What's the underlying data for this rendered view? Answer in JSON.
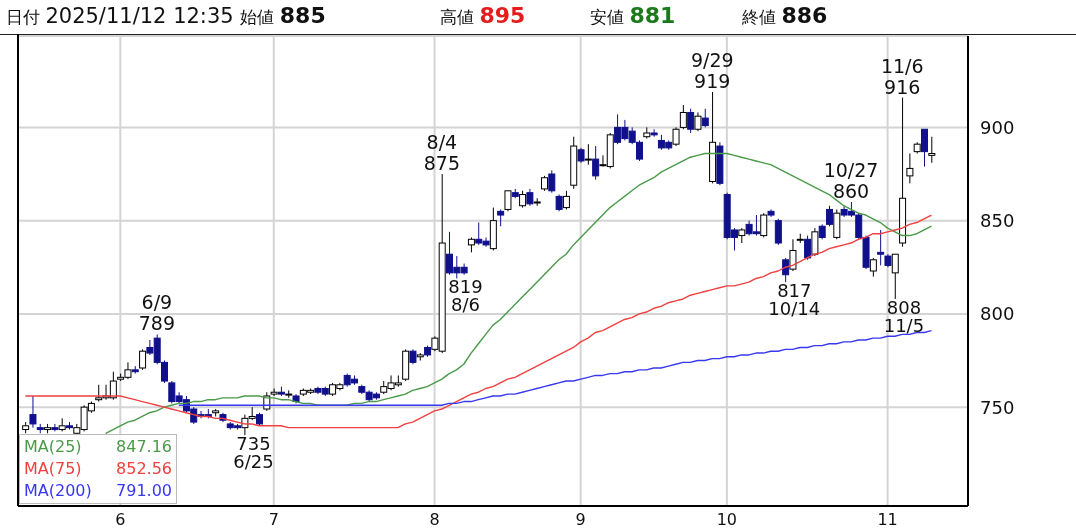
{
  "chart_data": {
    "type": "candlestick",
    "title": "日付 2025/11/12 12:35 始値 885 高値 895 安値 881 終値 886",
    "colors": [
      "#ffffff",
      "#10108c",
      "#10108c",
      "#ffffff",
      "#10108c",
      "#ffffff",
      "#10108c",
      "#ffffff",
      "#ffffff",
      "#ffffff",
      "#ffffff",
      "#ffffff",
      "#ffffff",
      "#ffffff",
      "#ffffff",
      "#10108c",
      "#ffffff",
      "#10108c",
      "#10108c",
      "#10108c",
      "#10108c",
      "#10108c",
      "#10108c",
      "#10108c",
      "#10108c",
      "#10108c",
      "#ffffff",
      "#10108c",
      "#10108c",
      "#10108c",
      "#ffffff",
      "#ffffff",
      "#10108c",
      "#ffffff",
      "#ffffff",
      "#10108c",
      "#ffffff",
      "#10108c",
      "#ffffff",
      "#ffffff",
      "#10108c",
      "#10108c",
      "#ffffff",
      "#ffffff",
      "#10108c",
      "#10108c",
      "#10108c",
      "#10108c",
      "#10108c",
      "#ffffff",
      "#ffffff",
      "#ffffff",
      "#ffffff",
      "#10108c",
      "#ffffff",
      "#10108c",
      "#ffffff",
      "#ffffff",
      "#10108c",
      "#10108c",
      "#10108c",
      "#ffffff",
      "#10108c",
      "#10108c",
      "#ffffff",
      "#10108c",
      "#ffffff",
      "#10108c",
      "#ffffff",
      "#10108c",
      "#ffffff",
      "#ffffff",
      "#10108c",
      "#10108c",
      "#ffffff",
      "#ffffff",
      "#10108c",
      "#ffffff",
      "#10108c",
      "#ffffff",
      "#ffffff",
      "#10108c",
      "#10108c",
      "#10108c",
      "#10108c",
      "#ffffff",
      "#10108c",
      "#10108c",
      "#10108c",
      "#ffffff",
      "#ffffff",
      "#10108c",
      "#ffffff",
      "#10108c",
      "#ffffff",
      "#10108c",
      "#10108c",
      "#10108c",
      "#ffffff",
      "#10108c",
      "#10108c",
      "#ffffff",
      "#10108c",
      "#10108c",
      "#10108c",
      "#ffffff",
      "#ffffff",
      "#10108c",
      "#ffffff",
      "#10108c",
      "#10108c",
      "#ffffff",
      "#10108c",
      "#10108c",
      "#10108c",
      "#10108c",
      "#ffffff",
      "#10108c",
      "#10108c",
      "#ffffff",
      "#ffffff",
      "#ffffff",
      "#ffffff",
      "#10108c",
      "#ffffff"
    ],
    "categories": [
      null,
      null,
      null,
      null,
      null,
      null,
      null,
      null,
      null,
      null,
      null,
      null,
      null,
      "6",
      null,
      null,
      null,
      null,
      null,
      null,
      null,
      null,
      null,
      null,
      null,
      null,
      null,
      null,
      null,
      null,
      null,
      null,
      null,
      null,
      "7",
      null,
      null,
      null,
      null,
      null,
      null,
      null,
      null,
      null,
      null,
      null,
      null,
      null,
      null,
      null,
      null,
      null,
      null,
      null,
      null,
      null,
      "8",
      null,
      null,
      null,
      null,
      null,
      null,
      null,
      null,
      null,
      null,
      null,
      null,
      null,
      null,
      null,
      null,
      null,
      null,
      null,
      "9",
      null,
      null,
      null,
      null,
      null,
      null,
      null,
      null,
      null,
      null,
      null,
      null,
      null,
      null,
      null,
      null,
      null,
      null,
      null,
      "10",
      null,
      null,
      null,
      null,
      null,
      null,
      null,
      null,
      null,
      null,
      null,
      null,
      null,
      null,
      null,
      null,
      null,
      null,
      null,
      null,
      null,
      "11",
      null,
      null,
      null,
      null,
      null,
      null
    ],
    "ohlc": [
      [
        738,
        742,
        736,
        740
      ],
      [
        746,
        756,
        739,
        741
      ],
      [
        739,
        741,
        736,
        738
      ],
      [
        738,
        741,
        736,
        739
      ],
      [
        739,
        741,
        737,
        738
      ],
      [
        738,
        744,
        737,
        740
      ],
      [
        740,
        742,
        738,
        739
      ],
      [
        736,
        741,
        736,
        739
      ],
      [
        738,
        751,
        737,
        750
      ],
      [
        748,
        753,
        747,
        752
      ],
      [
        754,
        762,
        753,
        755
      ],
      [
        755,
        762,
        754,
        756
      ],
      [
        755,
        769,
        754,
        764
      ],
      [
        765,
        768,
        764,
        766
      ],
      [
        766,
        774,
        765,
        770
      ],
      [
        770,
        772,
        768,
        769
      ],
      [
        771,
        781,
        770,
        780
      ],
      [
        782,
        786,
        778,
        779
      ],
      [
        787,
        789,
        773,
        774
      ],
      [
        774,
        775,
        763,
        764
      ],
      [
        763,
        764,
        752,
        753
      ],
      [
        756,
        758,
        752,
        753
      ],
      [
        754,
        756,
        747,
        748
      ],
      [
        749,
        750,
        741,
        742
      ],
      [
        746,
        748,
        744,
        745
      ],
      [
        746,
        749,
        744,
        745
      ],
      [
        747,
        749,
        745,
        748
      ],
      [
        746,
        747,
        742,
        743
      ],
      [
        741,
        742,
        738,
        739
      ],
      [
        740,
        741,
        738,
        739
      ],
      [
        739,
        746,
        735,
        744
      ],
      [
        744,
        750,
        743,
        745
      ],
      [
        746,
        747,
        740,
        741
      ],
      [
        749,
        758,
        748,
        756
      ],
      [
        757,
        760,
        756,
        758
      ],
      [
        758,
        761,
        756,
        757
      ],
      [
        757,
        759,
        755,
        757
      ],
      [
        756,
        757,
        752,
        753
      ],
      [
        757,
        760,
        756,
        759
      ],
      [
        758,
        760,
        757,
        759
      ],
      [
        760,
        761,
        757,
        758
      ],
      [
        760,
        761,
        756,
        757
      ],
      [
        757,
        763,
        756,
        762
      ],
      [
        760,
        763,
        759,
        762
      ],
      [
        767,
        768,
        761,
        762
      ],
      [
        765,
        767,
        762,
        763
      ],
      [
        761,
        762,
        757,
        758
      ],
      [
        758,
        759,
        753,
        754
      ],
      [
        757,
        758,
        754,
        755
      ],
      [
        758,
        764,
        757,
        761
      ],
      [
        760,
        767,
        759,
        763
      ],
      [
        762,
        767,
        761,
        763
      ],
      [
        765,
        781,
        764,
        780
      ],
      [
        780,
        781,
        773,
        774
      ],
      [
        777,
        779,
        775,
        778
      ],
      [
        782,
        783,
        777,
        778
      ],
      [
        781,
        788,
        780,
        787
      ],
      [
        780,
        875,
        779,
        838
      ],
      [
        832,
        844,
        821,
        822
      ],
      [
        825,
        831,
        819,
        822
      ],
      [
        825,
        827,
        821,
        822
      ],
      [
        837,
        841,
        833,
        840
      ],
      [
        840,
        849,
        837,
        838
      ],
      [
        839,
        841,
        836,
        837
      ],
      [
        835,
        857,
        834,
        850
      ],
      [
        855,
        856,
        847,
        853
      ],
      [
        856,
        866,
        855,
        866
      ],
      [
        865,
        867,
        862,
        863
      ],
      [
        858,
        866,
        857,
        864
      ],
      [
        865,
        867,
        858,
        859
      ],
      [
        860,
        862,
        858,
        860
      ],
      [
        867,
        874,
        866,
        873
      ],
      [
        875,
        877,
        865,
        866
      ],
      [
        863,
        864,
        855,
        856
      ],
      [
        857,
        866,
        856,
        863
      ],
      [
        869,
        895,
        867,
        890
      ],
      [
        888,
        889,
        881,
        882
      ],
      [
        883,
        891,
        880,
        883
      ],
      [
        883,
        890,
        872,
        874
      ],
      [
        880,
        885,
        879,
        880
      ],
      [
        879,
        897,
        878,
        896
      ],
      [
        900,
        907,
        891,
        892
      ],
      [
        900,
        904,
        893,
        894
      ],
      [
        898,
        900,
        891,
        892
      ],
      [
        892,
        893,
        882,
        883
      ],
      [
        895,
        900,
        894,
        897
      ],
      [
        897,
        899,
        895,
        896
      ],
      [
        893,
        896,
        888,
        889
      ],
      [
        892,
        893,
        888,
        889
      ],
      [
        891,
        900,
        890,
        899
      ],
      [
        900,
        912,
        899,
        908
      ],
      [
        908,
        910,
        897,
        899
      ],
      [
        899,
        908,
        898,
        906
      ],
      [
        905,
        910,
        900,
        901
      ],
      [
        871,
        919,
        870,
        892
      ],
      [
        890,
        892,
        869,
        870
      ],
      [
        864,
        865,
        840,
        841
      ],
      [
        845,
        846,
        834,
        841
      ],
      [
        842,
        846,
        838,
        845
      ],
      [
        848,
        850,
        842,
        843
      ],
      [
        844,
        853,
        842,
        843
      ],
      [
        842,
        854,
        841,
        853
      ],
      [
        855,
        856,
        852,
        853
      ],
      [
        850,
        851,
        837,
        838
      ],
      [
        829,
        830,
        817,
        821
      ],
      [
        824,
        840,
        823,
        834
      ],
      [
        840,
        843,
        838,
        840
      ],
      [
        840,
        842,
        829,
        830
      ],
      [
        832,
        846,
        831,
        844
      ],
      [
        847,
        848,
        840,
        841
      ],
      [
        856,
        858,
        847,
        848
      ],
      [
        841,
        856,
        840,
        854
      ],
      [
        856,
        858,
        852,
        853
      ],
      [
        855,
        860,
        852,
        853
      ],
      [
        853,
        854,
        840,
        841
      ],
      [
        841,
        842,
        824,
        825
      ],
      [
        823,
        830,
        820,
        829
      ],
      [
        833,
        845,
        826,
        832
      ],
      [
        831,
        832,
        825,
        826
      ],
      [
        822,
        832,
        808,
        832
      ],
      [
        838,
        916,
        836,
        862
      ],
      [
        874,
        886,
        870,
        878
      ],
      [
        887,
        892,
        886,
        891
      ],
      [
        899,
        899,
        879,
        887
      ],
      [
        885,
        895,
        881,
        886
      ]
    ],
    "series": [
      {
        "name": "MA(25)",
        "type": "line",
        "color": "#4a9a4a",
        "values": [
          null,
          null,
          null,
          null,
          null,
          null,
          null,
          null,
          null,
          null,
          null,
          736,
          738,
          740,
          742,
          743,
          745,
          747,
          748,
          750,
          751,
          752,
          752,
          753,
          753,
          754,
          754,
          755,
          755,
          755,
          756,
          756,
          756,
          755,
          755,
          754,
          754,
          753,
          752,
          752,
          751,
          751,
          751,
          751,
          751,
          752,
          752,
          753,
          753,
          754,
          755,
          756,
          757,
          759,
          760,
          761,
          763,
          765,
          768,
          770,
          773,
          779,
          784,
          789,
          794,
          797,
          801,
          805,
          809,
          813,
          817,
          821,
          825,
          829,
          832,
          837,
          841,
          845,
          849,
          853,
          857,
          860,
          863,
          866,
          869,
          871,
          873,
          876,
          878,
          880,
          882,
          884,
          885,
          886,
          886,
          886,
          886,
          885,
          884,
          883,
          882,
          881,
          880,
          878,
          876,
          874,
          872,
          870,
          868,
          866,
          864,
          861,
          858,
          856,
          854,
          853,
          851,
          849,
          846,
          844,
          842,
          842,
          843,
          845,
          847
        ]
      },
      {
        "name": "MA(75)",
        "type": "line",
        "color": "#f04040",
        "values": [
          756,
          756,
          756,
          756,
          756,
          756,
          756,
          756,
          756,
          756,
          756,
          756,
          756,
          756,
          755,
          754,
          753,
          752,
          751,
          750,
          749,
          748,
          747,
          746,
          745,
          745,
          744,
          744,
          743,
          742,
          741,
          741,
          740,
          740,
          740,
          740,
          739,
          739,
          739,
          739,
          739,
          739,
          739,
          739,
          739,
          739,
          739,
          739,
          739,
          739,
          739,
          739,
          741,
          742,
          744,
          746,
          748,
          749,
          751,
          753,
          755,
          757,
          758,
          760,
          761,
          763,
          765,
          766,
          768,
          770,
          772,
          774,
          776,
          778,
          780,
          782,
          785,
          787,
          790,
          791,
          793,
          795,
          797,
          798,
          800,
          801,
          803,
          804,
          806,
          807,
          808,
          810,
          811,
          812,
          813,
          814,
          815,
          815,
          816,
          817,
          819,
          820,
          822,
          823,
          825,
          826,
          828,
          830,
          832,
          833,
          835,
          836,
          837,
          838,
          840,
          841,
          843,
          843,
          844,
          845,
          846,
          848,
          849,
          851,
          853
        ]
      },
      {
        "name": "MA(200)",
        "type": "line",
        "color": "#3838f0",
        "values": [
          null,
          null,
          null,
          null,
          null,
          null,
          null,
          null,
          null,
          null,
          null,
          null,
          null,
          null,
          null,
          null,
          null,
          null,
          null,
          null,
          null,
          751,
          751,
          751,
          751,
          751,
          751,
          751,
          751,
          751,
          751,
          751,
          751,
          751,
          751,
          751,
          751,
          751,
          751,
          751,
          751,
          751,
          751,
          751,
          751,
          751,
          751,
          751,
          751,
          751,
          751,
          751,
          751,
          751,
          751,
          751,
          751,
          751,
          752,
          752,
          753,
          753,
          754,
          755,
          756,
          756,
          757,
          757,
          758,
          759,
          760,
          761,
          762,
          763,
          764,
          764,
          765,
          766,
          767,
          767,
          768,
          768,
          769,
          769,
          770,
          770,
          771,
          771,
          772,
          773,
          774,
          774,
          775,
          775,
          776,
          776,
          777,
          777,
          778,
          778,
          779,
          779,
          780,
          780,
          781,
          781,
          782,
          782,
          783,
          783,
          784,
          784,
          785,
          785,
          786,
          786,
          787,
          787,
          788,
          788,
          789,
          789,
          790,
          790,
          791
        ]
      }
    ],
    "ylim": [
      697,
      949
    ],
    "yticks": [
      750,
      800,
      850,
      900
    ],
    "grid": true,
    "legend": "bottom left",
    "annotations": [
      {
        "text": "6/9\n789",
        "y": 789
      },
      {
        "text": "8/4\n875",
        "y": 875
      },
      {
        "text": "9/29\n919",
        "y": 919
      },
      {
        "text": "10/27\n860",
        "y": 860
      },
      {
        "text": "11/6\n916",
        "y": 916
      },
      "847.16",
      "852.56",
      "791.00",
      "735\n6/25",
      "819\n8/6",
      "817\n10/14",
      "808\n11/5"
    ]
  }
}
